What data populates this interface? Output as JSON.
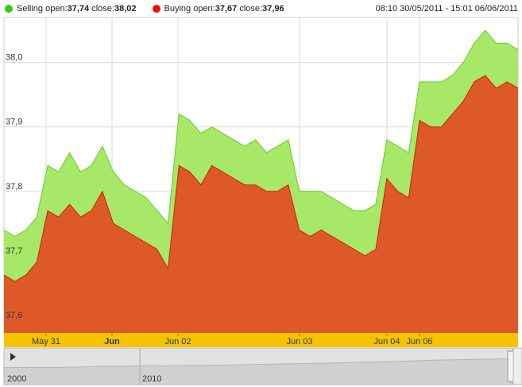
{
  "legend": {
    "selling": {
      "label": "Selling",
      "open_label": "open:",
      "open": "37,74",
      "close_label": "close:",
      "close": "38,02",
      "color": "#33cc00"
    },
    "buying": {
      "label": "Buying",
      "open_label": "open:",
      "open": "37,67",
      "close_label": "close:",
      "close": "37,96",
      "color": "#ee1100"
    },
    "range": "08:10 30/05/2011 - 15:01 06/06/2011"
  },
  "colors": {
    "selling_fill": "#a8e868",
    "selling_line": "#66cc22",
    "buying_fill": "#dd5a28",
    "buying_line": "#cc2200",
    "time_axis_band": "#f5c400",
    "navigator_bg": "#e2e2e2",
    "grid": "#d8d8d8"
  },
  "chart_data": {
    "type": "area",
    "ylim": [
      37.58,
      38.07
    ],
    "y_ticks": [
      "37,6",
      "37,7",
      "37,8",
      "37,9",
      "38,0"
    ],
    "y_tick_values": [
      37.6,
      37.7,
      37.8,
      37.9,
      38.0
    ],
    "x_tick_labels": [
      "May 31",
      "Jun",
      "Jun 02",
      "Jun 03",
      "Jun 04",
      "Jun 06"
    ],
    "x_tick_bold": [
      false,
      true,
      false,
      false,
      false,
      false
    ],
    "series": [
      {
        "name": "Selling",
        "values": [
          37.74,
          37.73,
          37.74,
          37.76,
          37.84,
          37.83,
          37.86,
          37.83,
          37.84,
          37.87,
          37.83,
          37.81,
          37.8,
          37.79,
          37.77,
          37.75,
          37.92,
          37.91,
          37.89,
          37.9,
          37.89,
          37.88,
          37.87,
          37.88,
          37.86,
          37.87,
          37.88,
          37.8,
          37.8,
          37.8,
          37.79,
          37.78,
          37.77,
          37.77,
          37.78,
          37.88,
          37.87,
          37.86,
          37.97,
          37.97,
          37.97,
          37.98,
          38.0,
          38.03,
          38.05,
          38.03,
          38.03,
          38.02
        ]
      },
      {
        "name": "Buying",
        "values": [
          37.67,
          37.66,
          37.67,
          37.69,
          37.77,
          37.76,
          37.78,
          37.76,
          37.77,
          37.8,
          37.75,
          37.74,
          37.73,
          37.72,
          37.71,
          37.68,
          37.84,
          37.83,
          37.81,
          37.84,
          37.83,
          37.82,
          37.81,
          37.81,
          37.8,
          37.8,
          37.81,
          37.74,
          37.73,
          37.74,
          37.73,
          37.72,
          37.71,
          37.7,
          37.71,
          37.82,
          37.8,
          37.79,
          37.91,
          37.9,
          37.9,
          37.92,
          37.94,
          37.97,
          37.98,
          37.96,
          37.97,
          37.96
        ]
      }
    ]
  },
  "navigator": {
    "labels": [
      "2000",
      "2010"
    ],
    "history": [
      0.1,
      0.11,
      0.12,
      0.12,
      0.13,
      0.14,
      0.18,
      0.22,
      0.2,
      0.24,
      0.27,
      0.26,
      0.28,
      0.3,
      0.31,
      0.33,
      0.35,
      0.38,
      0.4,
      0.42,
      0.45,
      0.48,
      0.5,
      0.53,
      0.56,
      0.6,
      0.62,
      0.66,
      0.7,
      0.74,
      0.78,
      0.8,
      0.83,
      0.86,
      0.88,
      0.9
    ]
  }
}
